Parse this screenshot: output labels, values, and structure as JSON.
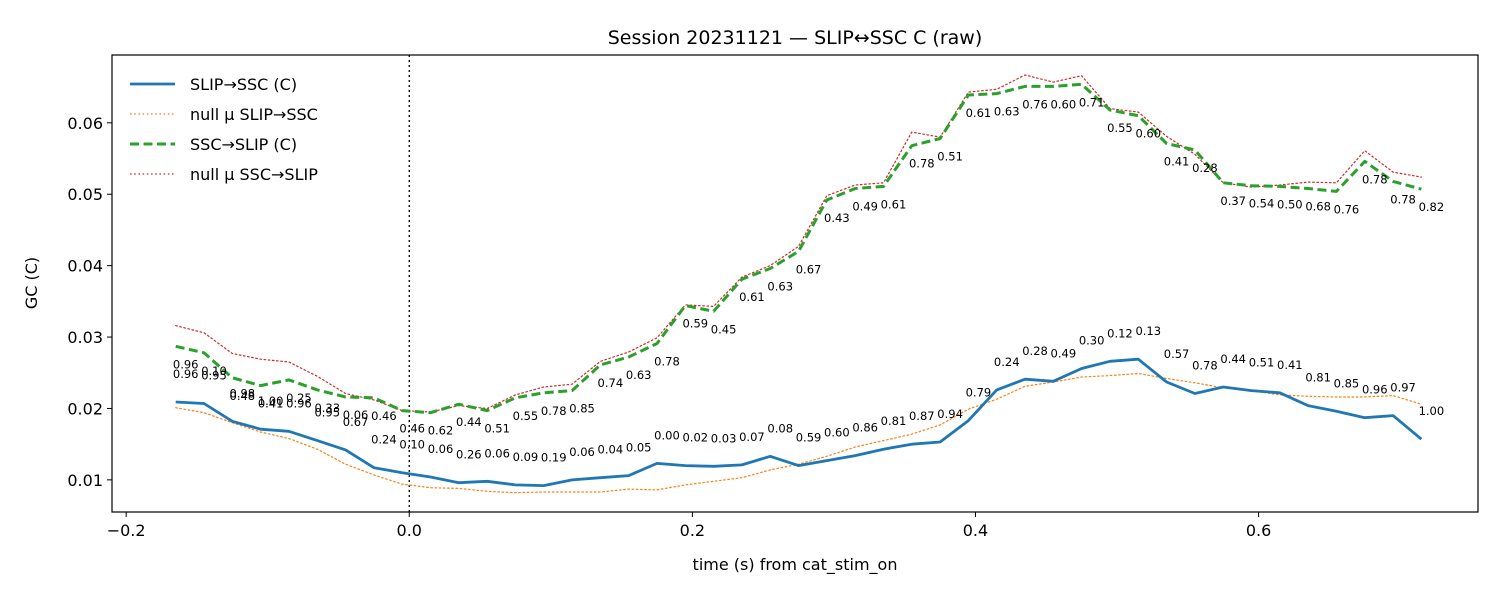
{
  "chart_data": {
    "type": "line",
    "title": "Session 20231121 — SLIP↔SSC C (raw)",
    "xlabel": "time (s) from cat_stim_on",
    "ylabel": "GC (C)",
    "xlim": [
      -0.21,
      0.755
    ],
    "ylim": [
      0.0055,
      0.0695
    ],
    "xticks": [
      -0.2,
      0.0,
      0.2,
      0.4,
      0.6
    ],
    "xtick_labels": [
      "−0.2",
      "0.0",
      "0.2",
      "0.4",
      "0.6"
    ],
    "yticks": [
      0.01,
      0.02,
      0.03,
      0.04,
      0.05,
      0.06
    ],
    "ytick_labels": [
      "0.01",
      "0.02",
      "0.03",
      "0.04",
      "0.05",
      "0.06"
    ],
    "vline_x": 0.0,
    "grid": false,
    "legend_position": "upper-left",
    "x": [
      -0.165,
      -0.145,
      -0.125,
      -0.105,
      -0.085,
      -0.065,
      -0.045,
      -0.025,
      -0.005,
      0.015,
      0.035,
      0.055,
      0.075,
      0.095,
      0.115,
      0.135,
      0.155,
      0.175,
      0.195,
      0.215,
      0.235,
      0.255,
      0.275,
      0.295,
      0.315,
      0.335,
      0.355,
      0.375,
      0.395,
      0.415,
      0.435,
      0.455,
      0.475,
      0.495,
      0.515,
      0.535,
      0.555,
      0.575,
      0.595,
      0.615,
      0.635,
      0.655,
      0.675,
      0.695,
      0.715
    ],
    "series": [
      {
        "name": "SLIP→SSC (C)",
        "color": "#1f77b4",
        "style": "solid",
        "values": [
          0.0209,
          0.0207,
          0.0182,
          0.0171,
          0.0168,
          0.0155,
          0.0142,
          0.0117,
          0.011,
          0.0104,
          0.0096,
          0.0098,
          0.0093,
          0.0092,
          0.01,
          0.0103,
          0.0106,
          0.0123,
          0.012,
          0.0119,
          0.0121,
          0.0133,
          0.012,
          0.0127,
          0.0134,
          0.0143,
          0.015,
          0.0153,
          0.0183,
          0.0226,
          0.0241,
          0.0238,
          0.0256,
          0.0266,
          0.0269,
          0.0237,
          0.0221,
          0.023,
          0.0225,
          0.0222,
          0.0204,
          0.0196,
          0.0187,
          0.019,
          0.0157
        ]
      },
      {
        "name": "null μ SLIP→SSC",
        "color": "#ff7f0e",
        "style": "dotted",
        "values": [
          0.0201,
          0.0194,
          0.018,
          0.0167,
          0.0158,
          0.0143,
          0.0122,
          0.0107,
          0.0094,
          0.0089,
          0.0088,
          0.0084,
          0.0082,
          0.0083,
          0.0083,
          0.0083,
          0.0087,
          0.0086,
          0.0093,
          0.0098,
          0.0103,
          0.0114,
          0.0122,
          0.0133,
          0.0146,
          0.0155,
          0.0164,
          0.0177,
          0.0199,
          0.0213,
          0.0231,
          0.0237,
          0.0244,
          0.0246,
          0.0249,
          0.0242,
          0.0236,
          0.0229,
          0.0225,
          0.0219,
          0.0217,
          0.0216,
          0.0216,
          0.0218,
          0.0206
        ]
      },
      {
        "name": "SSC→SLIP (C)",
        "color": "#2ca02c",
        "style": "dashed",
        "values": [
          0.0287,
          0.0278,
          0.0243,
          0.0232,
          0.024,
          0.0226,
          0.0216,
          0.0215,
          0.0197,
          0.0194,
          0.0206,
          0.0197,
          0.0215,
          0.0222,
          0.0225,
          0.0261,
          0.0272,
          0.0291,
          0.0344,
          0.0336,
          0.0381,
          0.0396,
          0.042,
          0.0492,
          0.0508,
          0.0511,
          0.0568,
          0.0578,
          0.0639,
          0.0641,
          0.0651,
          0.0651,
          0.0654,
          0.0618,
          0.061,
          0.0571,
          0.0562,
          0.0516,
          0.0512,
          0.0511,
          0.0508,
          0.0504,
          0.0546,
          0.0518,
          0.0507
        ]
      },
      {
        "name": "null μ SSC→SLIP",
        "color": "#d62728",
        "style": "dotted",
        "values": [
          0.0316,
          0.0306,
          0.0277,
          0.0269,
          0.0265,
          0.0245,
          0.0221,
          0.0212,
          0.0197,
          0.0195,
          0.0204,
          0.02,
          0.0219,
          0.023,
          0.0234,
          0.0266,
          0.0279,
          0.0299,
          0.0345,
          0.0343,
          0.0384,
          0.04,
          0.0427,
          0.0498,
          0.0513,
          0.0516,
          0.0587,
          0.058,
          0.0643,
          0.0647,
          0.0667,
          0.0657,
          0.0666,
          0.062,
          0.0615,
          0.0581,
          0.0556,
          0.0516,
          0.051,
          0.0513,
          0.0517,
          0.0516,
          0.0561,
          0.0531,
          0.0524
        ]
      }
    ],
    "annotations": {
      "slip_to_ssc_pvalues": [
        "0.96",
        "0.95",
        "0.98",
        "1.00",
        "0.96",
        "0.95",
        "0.67",
        "0.24",
        "0.10",
        "0.06",
        "0.26",
        "0.06",
        "0.09",
        "0.19",
        "0.06",
        "0.04",
        "0.05",
        "0.00",
        "0.02",
        "0.03",
        "0.07",
        "0.08",
        "0.59",
        "0.60",
        "0.86",
        "0.81",
        "0.87",
        "0.94",
        "0.79",
        "0.24",
        "0.28",
        "0.49",
        "0.30",
        "0.12",
        "0.13",
        "0.57",
        "0.78",
        "0.44",
        "0.51",
        "0.41",
        "0.81",
        "0.85",
        "0.96",
        "0.97",
        "1.00"
      ],
      "ssc_to_slip_pvalues": [
        "0.96",
        "0.10",
        "0.48",
        "0.41",
        "0.25",
        "0.33",
        "0.06",
        "0.46",
        "0.46",
        "0.62",
        "0.44",
        "0.51",
        "0.55",
        "0.78",
        "0.85",
        "0.74",
        "0.63",
        "0.78",
        "0.59",
        "0.45",
        "0.61",
        "0.63",
        "0.67",
        "0.43",
        "0.49",
        "0.61",
        "0.78",
        "0.51",
        "0.61",
        "0.63",
        "0.76",
        "0.60",
        "0.71",
        "0.55",
        "0.60",
        "0.41",
        "0.28",
        "0.37",
        "0.54",
        "0.50",
        "0.68",
        "0.76",
        "0.78",
        "0.78",
        "0.82"
      ]
    }
  }
}
